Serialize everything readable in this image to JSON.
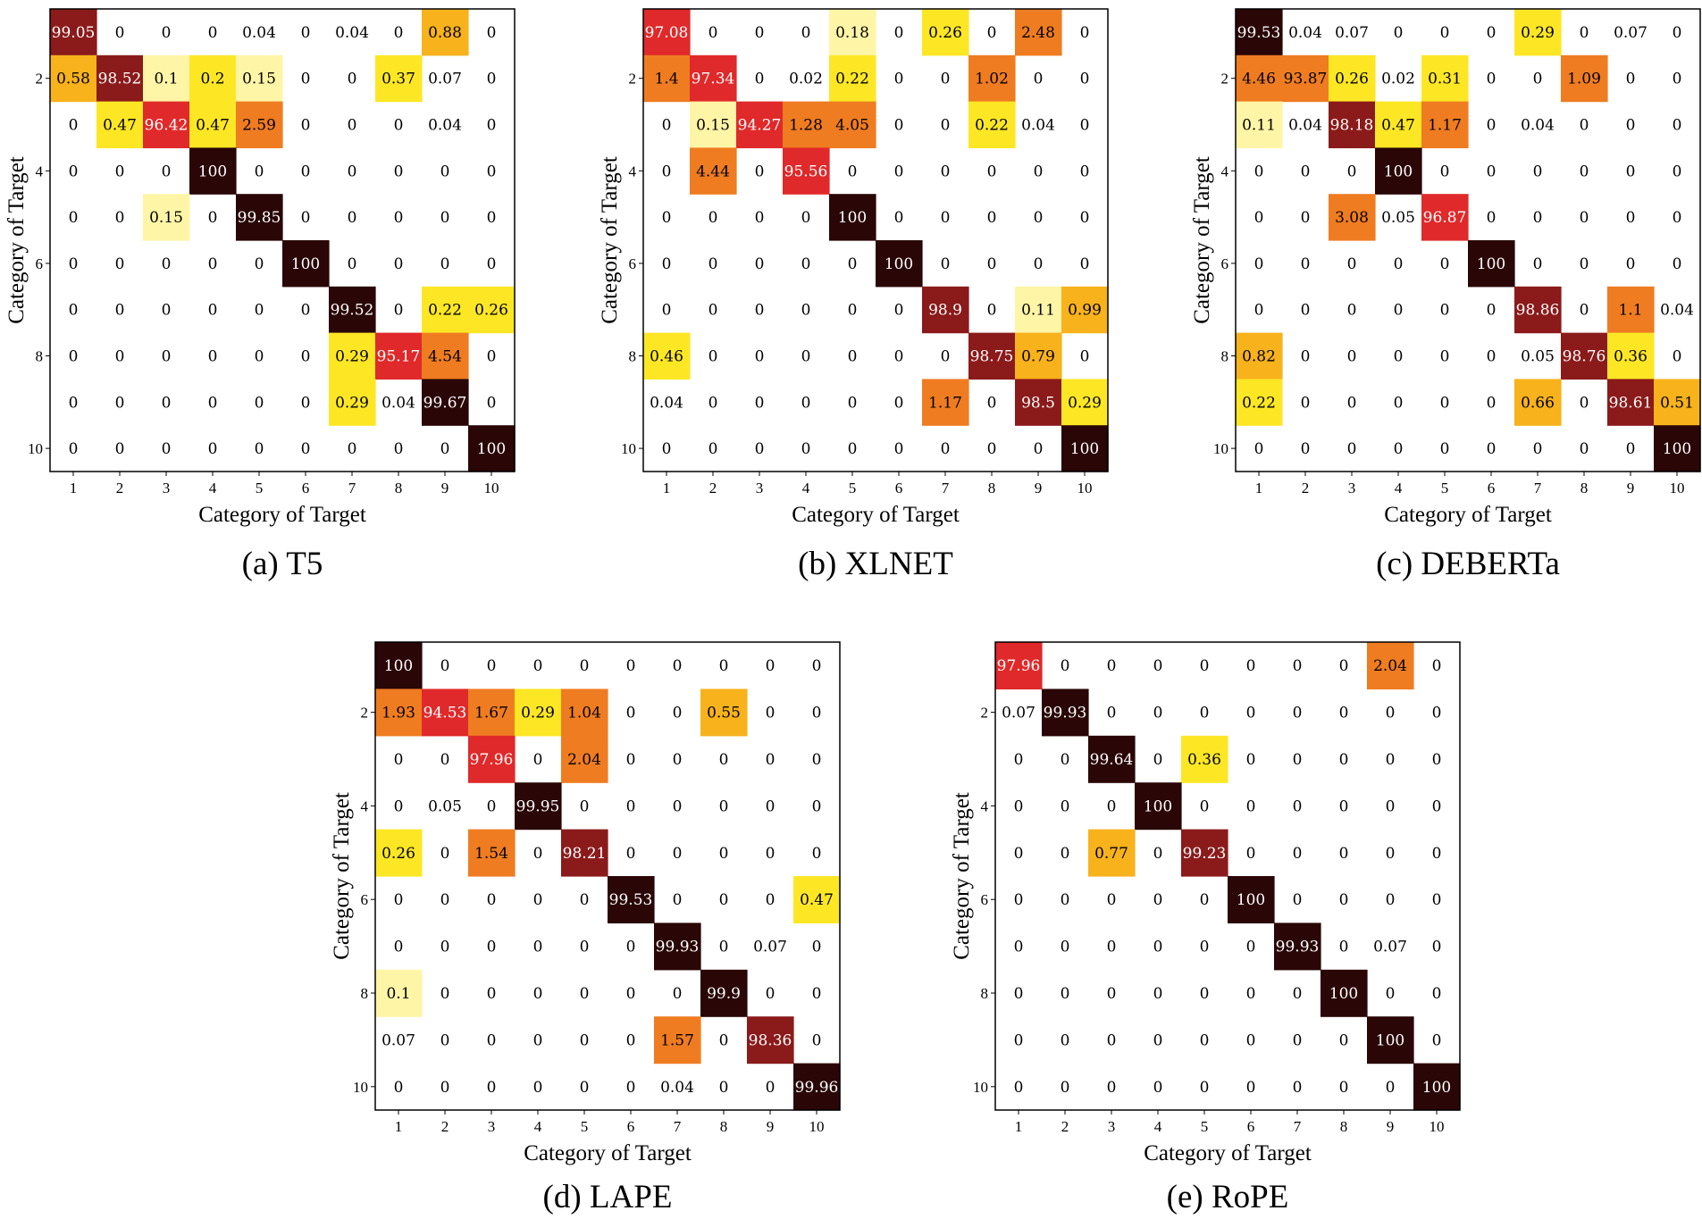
{
  "figure": {
    "colors": {
      "c1": "#fff5a6",
      "c2": "#fde725",
      "c3": "#f7b21c",
      "c4": "#ef7c21",
      "c5": "#e0292a",
      "c6": "#8b1a1a",
      "c7": "#2a0606"
    }
  },
  "chart_data": [
    {
      "type": "heatmap",
      "title": "(a) T5",
      "xlabel": "Category of Target",
      "ylabel": "Category of Target",
      "x_ticks": [
        "1",
        "2",
        "3",
        "4",
        "5",
        "6",
        "7",
        "8",
        "9",
        "10"
      ],
      "y_ticks": [
        "2",
        "4",
        "6",
        "8",
        "10"
      ],
      "labels": [
        [
          "99.05",
          "0",
          "0",
          "0",
          "0.04",
          "0",
          "0.04",
          "0",
          "0.88",
          "0"
        ],
        [
          "0.58",
          "98.52",
          "0.1",
          "0.2",
          "0.15",
          "0",
          "0",
          "0.37",
          "0.07",
          "0"
        ],
        [
          "0",
          "0.47",
          "96.42",
          "0.47",
          "2.59",
          "0",
          "0",
          "0",
          "0.04",
          "0"
        ],
        [
          "0",
          "0",
          "0",
          "100",
          "0",
          "0",
          "0",
          "0",
          "0",
          "0"
        ],
        [
          "0",
          "0",
          "0.15",
          "0",
          "99.85",
          "0",
          "0",
          "0",
          "0",
          "0"
        ],
        [
          "0",
          "0",
          "0",
          "0",
          "0",
          "100",
          "0",
          "0",
          "0",
          "0"
        ],
        [
          "0",
          "0",
          "0",
          "0",
          "0",
          "0",
          "99.52",
          "0",
          "0.22",
          "0.26"
        ],
        [
          "0",
          "0",
          "0",
          "0",
          "0",
          "0",
          "0.29",
          "95.17",
          "4.54",
          "0"
        ],
        [
          "0",
          "0",
          "0",
          "0",
          "0",
          "0",
          "0.29",
          "0.04",
          "99.67",
          "0"
        ],
        [
          "0",
          "0",
          "0",
          "0",
          "0",
          "0",
          "0",
          "0",
          "0",
          "100"
        ]
      ]
    },
    {
      "type": "heatmap",
      "title": "(b) XLNET",
      "xlabel": "Category of Target",
      "ylabel": "Category of Target",
      "x_ticks": [
        "1",
        "2",
        "3",
        "4",
        "5",
        "6",
        "7",
        "8",
        "9",
        "10"
      ],
      "y_ticks": [
        "2",
        "4",
        "6",
        "8",
        "10"
      ],
      "labels": [
        [
          "97.08",
          "0",
          "0",
          "0",
          "0.18",
          "0",
          "0.26",
          "0",
          "2.48",
          "0"
        ],
        [
          "1.4",
          "97.34",
          "0",
          "0.02",
          "0.22",
          "0",
          "0",
          "1.02",
          "0",
          "0"
        ],
        [
          "0",
          "0.15",
          "94.27",
          "1.28",
          "4.05",
          "0",
          "0",
          "0.22",
          "0.04",
          "0"
        ],
        [
          "0",
          "4.44",
          "0",
          "95.56",
          "0",
          "0",
          "0",
          "0",
          "0",
          "0"
        ],
        [
          "0",
          "0",
          "0",
          "0",
          "100",
          "0",
          "0",
          "0",
          "0",
          "0"
        ],
        [
          "0",
          "0",
          "0",
          "0",
          "0",
          "100",
          "0",
          "0",
          "0",
          "0"
        ],
        [
          "0",
          "0",
          "0",
          "0",
          "0",
          "0",
          "98.9",
          "0",
          "0.11",
          "0.99"
        ],
        [
          "0.46",
          "0",
          "0",
          "0",
          "0",
          "0",
          "0",
          "98.75",
          "0.79",
          "0"
        ],
        [
          "0.04",
          "0",
          "0",
          "0",
          "0",
          "0",
          "1.17",
          "0",
          "98.5",
          "0.29"
        ],
        [
          "0",
          "0",
          "0",
          "0",
          "0",
          "0",
          "0",
          "0",
          "0",
          "100"
        ]
      ]
    },
    {
      "type": "heatmap",
      "title": "(c) DEBERTa",
      "xlabel": "Category of Target",
      "ylabel": "Category of Target",
      "x_ticks": [
        "1",
        "2",
        "3",
        "4",
        "5",
        "6",
        "7",
        "8",
        "9",
        "10"
      ],
      "y_ticks": [
        "2",
        "4",
        "6",
        "8",
        "10"
      ],
      "labels": [
        [
          "99.53",
          "0.04",
          "0.07",
          "0",
          "0",
          "0",
          "0.29",
          "0",
          "0.07",
          "0"
        ],
        [
          "4.46",
          "93.87",
          "0.26",
          "0.02",
          "0.31",
          "0",
          "0",
          "1.09",
          "0",
          "0"
        ],
        [
          "0.11",
          "0.04",
          "98.18",
          "0.47",
          "1.17",
          "0",
          "0.04",
          "0",
          "0",
          "0"
        ],
        [
          "0",
          "0",
          "0",
          "100",
          "0",
          "0",
          "0",
          "0",
          "0",
          "0"
        ],
        [
          "0",
          "0",
          "3.08",
          "0.05",
          "96.87",
          "0",
          "0",
          "0",
          "0",
          "0"
        ],
        [
          "0",
          "0",
          "0",
          "0",
          "0",
          "100",
          "0",
          "0",
          "0",
          "0"
        ],
        [
          "0",
          "0",
          "0",
          "0",
          "0",
          "0",
          "98.86",
          "0",
          "1.1",
          "0.04"
        ],
        [
          "0.82",
          "0",
          "0",
          "0",
          "0",
          "0",
          "0.05",
          "98.76",
          "0.36",
          "0"
        ],
        [
          "0.22",
          "0",
          "0",
          "0",
          "0",
          "0",
          "0.66",
          "0",
          "98.61",
          "0.51"
        ],
        [
          "0",
          "0",
          "0",
          "0",
          "0",
          "0",
          "0",
          "0",
          "0",
          "100"
        ]
      ]
    },
    {
      "type": "heatmap",
      "title": "(d) LAPE",
      "xlabel": "Category of Target",
      "ylabel": "Category of Target",
      "x_ticks": [
        "1",
        "2",
        "3",
        "4",
        "5",
        "6",
        "7",
        "8",
        "9",
        "10"
      ],
      "y_ticks": [
        "2",
        "4",
        "6",
        "8",
        "10"
      ],
      "labels": [
        [
          "100",
          "0",
          "0",
          "0",
          "0",
          "0",
          "0",
          "0",
          "0",
          "0"
        ],
        [
          "1.93",
          "94.53",
          "1.67",
          "0.29",
          "1.04",
          "0",
          "0",
          "0.55",
          "0",
          "0"
        ],
        [
          "0",
          "0",
          "97.96",
          "0",
          "2.04",
          "0",
          "0",
          "0",
          "0",
          "0"
        ],
        [
          "0",
          "0.05",
          "0",
          "99.95",
          "0",
          "0",
          "0",
          "0",
          "0",
          "0"
        ],
        [
          "0.26",
          "0",
          "1.54",
          "0",
          "98.21",
          "0",
          "0",
          "0",
          "0",
          "0"
        ],
        [
          "0",
          "0",
          "0",
          "0",
          "0",
          "99.53",
          "0",
          "0",
          "0",
          "0.47"
        ],
        [
          "0",
          "0",
          "0",
          "0",
          "0",
          "0",
          "99.93",
          "0",
          "0.07",
          "0"
        ],
        [
          "0.1",
          "0",
          "0",
          "0",
          "0",
          "0",
          "0",
          "99.9",
          "0",
          "0"
        ],
        [
          "0.07",
          "0",
          "0",
          "0",
          "0",
          "0",
          "1.57",
          "0",
          "98.36",
          "0"
        ],
        [
          "0",
          "0",
          "0",
          "0",
          "0",
          "0",
          "0.04",
          "0",
          "0",
          "99.96"
        ]
      ]
    },
    {
      "type": "heatmap",
      "title": "(e) RoPE",
      "xlabel": "Category of Target",
      "ylabel": "Category of Target",
      "x_ticks": [
        "1",
        "2",
        "3",
        "4",
        "5",
        "6",
        "7",
        "8",
        "9",
        "10"
      ],
      "y_ticks": [
        "2",
        "4",
        "6",
        "8",
        "10"
      ],
      "labels": [
        [
          "97.96",
          "0",
          "0",
          "0",
          "0",
          "0",
          "0",
          "0",
          "2.04",
          "0"
        ],
        [
          "0.07",
          "99.93",
          "0",
          "0",
          "0",
          "0",
          "0",
          "0",
          "0",
          "0"
        ],
        [
          "0",
          "0",
          "99.64",
          "0",
          "0.36",
          "0",
          "0",
          "0",
          "0",
          "0"
        ],
        [
          "0",
          "0",
          "0",
          "100",
          "0",
          "0",
          "0",
          "0",
          "0",
          "0"
        ],
        [
          "0",
          "0",
          "0.77",
          "0",
          "99.23",
          "0",
          "0",
          "0",
          "0",
          "0"
        ],
        [
          "0",
          "0",
          "0",
          "0",
          "0",
          "100",
          "0",
          "0",
          "0",
          "0"
        ],
        [
          "0",
          "0",
          "0",
          "0",
          "0",
          "0",
          "99.93",
          "0",
          "0.07",
          "0"
        ],
        [
          "0",
          "0",
          "0",
          "0",
          "0",
          "0",
          "0",
          "100",
          "0",
          "0"
        ],
        [
          "0",
          "0",
          "0",
          "0",
          "0",
          "0",
          "0",
          "0",
          "100",
          "0"
        ],
        [
          "0",
          "0",
          "0",
          "0",
          "0",
          "0",
          "0",
          "0",
          "0",
          "100"
        ]
      ]
    }
  ]
}
